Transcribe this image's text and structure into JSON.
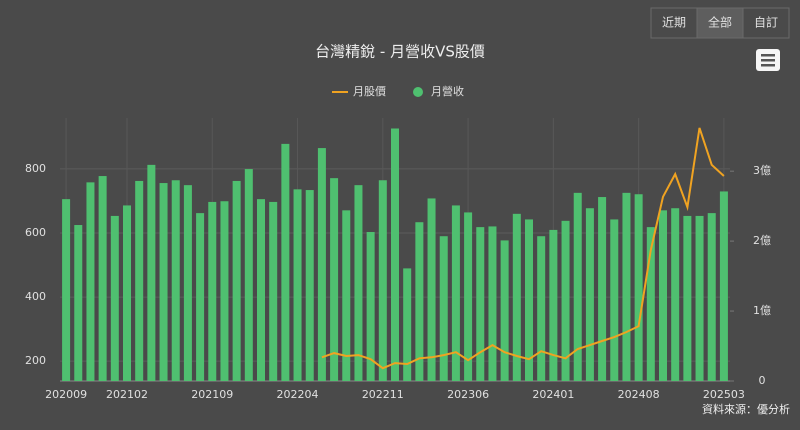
{
  "chart_data": {
    "type": "bar_line",
    "title": "台灣精銳 - 月營收VS股價",
    "buttons": [
      "近期",
      "全部",
      "自訂"
    ],
    "active_button": 1,
    "source": "資料來源：優分析",
    "categories": [
      "202009",
      null,
      null,
      null,
      null,
      "202102",
      null,
      null,
      null,
      null,
      null,
      null,
      "202109",
      null,
      null,
      null,
      null,
      null,
      null,
      "202204",
      null,
      null,
      null,
      null,
      null,
      null,
      "202211",
      null,
      null,
      null,
      null,
      null,
      null,
      "202306",
      null,
      null,
      null,
      null,
      null,
      null,
      "202401",
      null,
      null,
      null,
      null,
      null,
      null,
      "202408",
      null,
      null,
      null,
      null,
      null,
      null,
      "202503"
    ],
    "series": [
      {
        "name": "月股價",
        "type": "line",
        "axis": "y",
        "color": "#f0a321",
        "values": [
          null,
          null,
          null,
          null,
          null,
          null,
          null,
          null,
          null,
          null,
          null,
          null,
          null,
          null,
          null,
          null,
          null,
          null,
          null,
          null,
          null,
          212,
          225,
          216,
          219,
          206,
          178,
          194,
          191,
          209,
          212,
          219,
          228,
          203,
          228,
          250,
          228,
          216,
          206,
          231,
          219,
          209,
          238,
          250,
          263,
          275,
          291,
          309,
          547,
          713,
          784,
          681,
          928,
          813,
          778
        ]
      },
      {
        "name": "月營收",
        "type": "bar",
        "axis": "y2",
        "color": "#4fc070",
        "values": [
          2.6,
          2.23,
          2.84,
          2.93,
          2.36,
          2.51,
          2.86,
          3.09,
          2.83,
          2.87,
          2.8,
          2.4,
          2.56,
          2.57,
          2.86,
          3.03,
          2.6,
          2.56,
          3.39,
          2.74,
          2.73,
          3.33,
          2.9,
          2.44,
          2.8,
          2.13,
          2.87,
          3.61,
          1.61,
          2.27,
          2.61,
          2.07,
          2.51,
          2.41,
          2.2,
          2.21,
          2.01,
          2.39,
          2.31,
          2.07,
          2.16,
          2.29,
          2.69,
          2.47,
          2.63,
          2.31,
          2.69,
          2.67,
          2.2,
          2.44,
          2.47,
          2.36,
          2.36,
          2.4,
          2.71
        ]
      }
    ],
    "ylim": [
      138,
      959
    ],
    "yticks": [
      200,
      400,
      600,
      800
    ],
    "y2lim": [
      0,
      3.76
    ],
    "y2ticks": [
      0,
      {
        "value": 1,
        "label": "1億"
      },
      {
        "value": 2,
        "label": "2億"
      },
      {
        "value": 3,
        "label": "3億"
      }
    ],
    "grid": true
  }
}
